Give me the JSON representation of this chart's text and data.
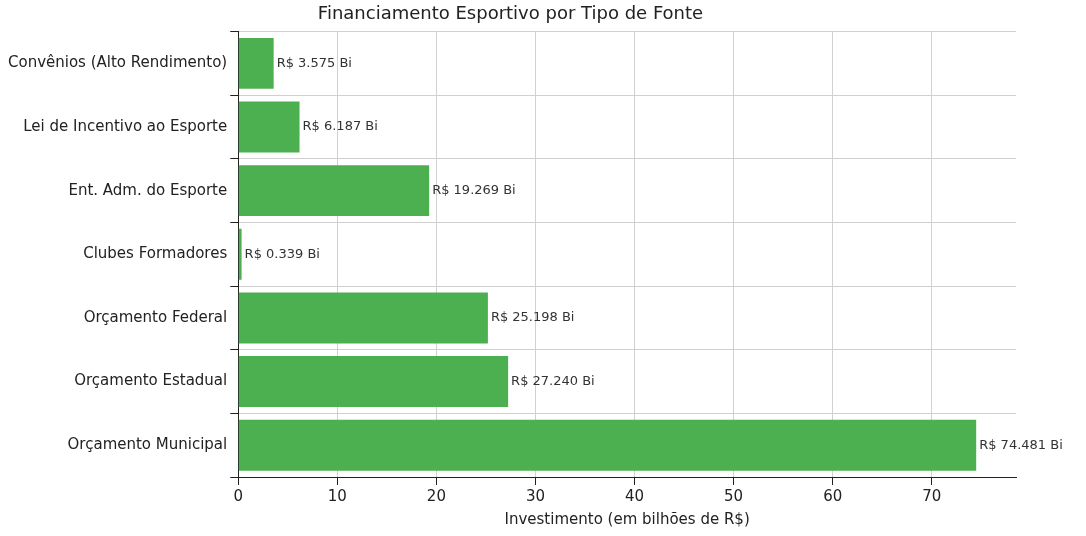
{
  "chart_data": {
    "type": "bar",
    "orientation": "horizontal",
    "title": "Financiamento Esportivo por Tipo de Fonte",
    "xlabel": "Investimento (em bilhões de R$)",
    "categories": [
      "Convênios (Alto Rendimento)",
      "Lei de Incentivo ao Esporte",
      "Ent. Adm. do Esporte",
      "Clubes Formadores",
      "Orçamento Federal",
      "Orçamento Estadual",
      "Orçamento Municipal"
    ],
    "values": [
      3.575,
      6.187,
      19.269,
      0.339,
      25.198,
      27.24,
      74.481
    ],
    "value_labels": [
      "R$ 3.575 Bi",
      "R$ 6.187 Bi",
      "R$ 19.269 Bi",
      "R$ 0.339 Bi",
      "R$ 25.198 Bi",
      "R$ 27.240 Bi",
      "R$ 74.481 Bi"
    ],
    "color": "#4caf50",
    "xlim": [
      0,
      78.5
    ],
    "xticks": [
      0,
      10,
      20,
      30,
      40,
      50,
      60,
      70
    ],
    "grid": true,
    "legend": false
  }
}
